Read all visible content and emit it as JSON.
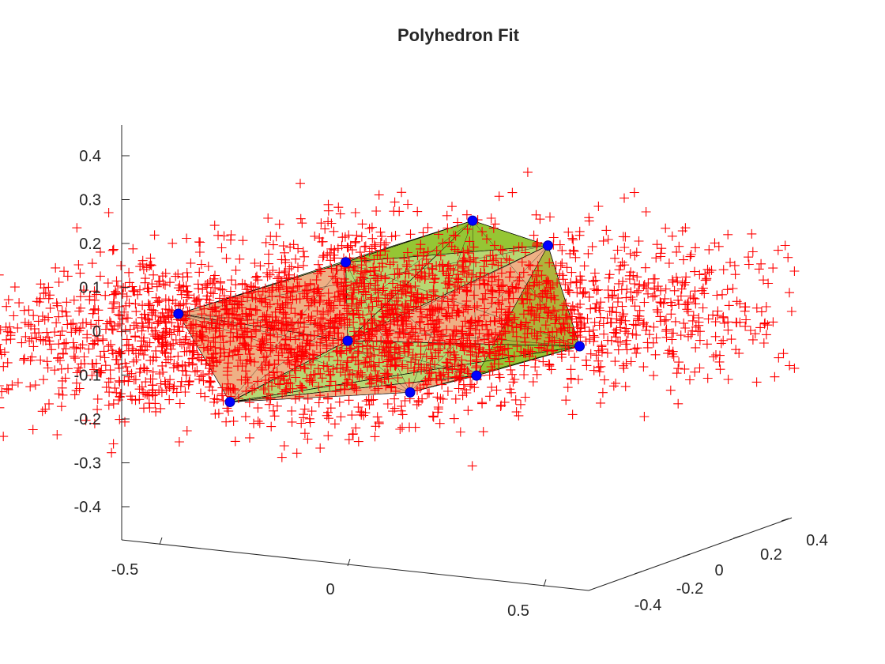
{
  "chart_data": {
    "type": "scatter",
    "title": "Polyhedron Fit",
    "xlabel": "",
    "ylabel": "",
    "zlabel": "",
    "xlim": [
      -0.6,
      0.6
    ],
    "ylim": [
      -0.5,
      0.5
    ],
    "zlim": [
      -0.48,
      0.48
    ],
    "x_ticks": [
      "-0.5",
      "0",
      "0.5"
    ],
    "y_ticks": [
      "-0.4",
      "-0.2",
      "0",
      "0.2",
      "0.4"
    ],
    "z_ticks": [
      "0.4",
      "0.3",
      "0.2",
      "0.1",
      "0",
      "-0.1",
      "-0.2",
      "-0.3",
      "-0.4"
    ],
    "grid": false,
    "colors": {
      "points": "#ff0000",
      "vertices": "#0000ff",
      "surface": "#7ab800",
      "surface_alt": "#e07020",
      "edges": "#000000",
      "axes": "#262626"
    },
    "series": [
      {
        "marker": "+",
        "color": "#ff0000",
        "note_count": 3000,
        "extent": {
          "x": [
            -0.55,
            0.6
          ],
          "y": [
            -0.45,
            0.45
          ],
          "z": [
            -0.28,
            0.33
          ]
        }
      },
      {
        "marker": "o",
        "color": "#0000ff",
        "points": [
          {
            "x": -0.52,
            "y": 0.05,
            "z": -0.01
          },
          {
            "x": 0.0,
            "y": 0.0,
            "z": -0.02
          },
          {
            "x": 0.48,
            "y": 0.1,
            "z": -0.015
          },
          {
            "x": 0.55,
            "y": -0.15,
            "z": -0.025
          },
          {
            "x": 0.58,
            "y": -0.3,
            "z": -0.03
          },
          {
            "x": -0.35,
            "y": 0.25,
            "z": 0.08
          },
          {
            "x": -0.15,
            "y": 0.35,
            "z": 0.17
          },
          {
            "x": 0.12,
            "y": 0.3,
            "z": 0.145
          },
          {
            "x": 0.1,
            "y": -0.3,
            "z": -0.09
          }
        ]
      }
    ]
  }
}
